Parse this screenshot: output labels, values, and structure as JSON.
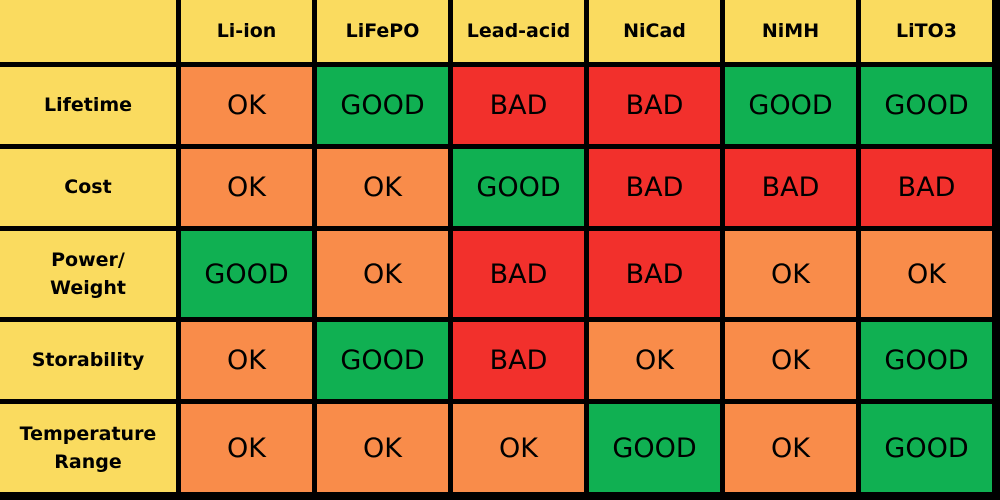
{
  "table": {
    "header_color": "#fadb5f",
    "columns": [
      "Li-ion",
      "LiFePO",
      "Lead-acid",
      "NiCad",
      "NiMH",
      "LiTO3"
    ],
    "rows": [
      {
        "label": "Lifetime",
        "cells": [
          {
            "text": "OK",
            "color": "#f98c4a"
          },
          {
            "text": "GOOD",
            "color": "#10b052"
          },
          {
            "text": "BAD",
            "color": "#f2302c"
          },
          {
            "text": "BAD",
            "color": "#f2302c"
          },
          {
            "text": "GOOD",
            "color": "#10b052"
          },
          {
            "text": "GOOD",
            "color": "#10b052"
          }
        ]
      },
      {
        "label": "Cost",
        "cells": [
          {
            "text": "OK",
            "color": "#f98c4a"
          },
          {
            "text": "OK",
            "color": "#f98c4a"
          },
          {
            "text": "GOOD",
            "color": "#10b052"
          },
          {
            "text": "BAD",
            "color": "#f2302c"
          },
          {
            "text": "BAD",
            "color": "#f2302c"
          },
          {
            "text": "BAD",
            "color": "#f2302c"
          }
        ]
      },
      {
        "label": "Power/\nWeight",
        "cells": [
          {
            "text": "GOOD",
            "color": "#10b052"
          },
          {
            "text": "OK",
            "color": "#f98c4a"
          },
          {
            "text": "BAD",
            "color": "#f2302c"
          },
          {
            "text": "BAD",
            "color": "#f2302c"
          },
          {
            "text": "OK",
            "color": "#f98c4a"
          },
          {
            "text": "OK",
            "color": "#f98c4a"
          }
        ]
      },
      {
        "label": "Storability",
        "cells": [
          {
            "text": "OK",
            "color": "#f98c4a"
          },
          {
            "text": "GOOD",
            "color": "#10b052"
          },
          {
            "text": "BAD",
            "color": "#f2302c"
          },
          {
            "text": "OK",
            "color": "#f98c4a"
          },
          {
            "text": "OK",
            "color": "#f98c4a"
          },
          {
            "text": "GOOD",
            "color": "#10b052"
          }
        ]
      },
      {
        "label": "Temperature Range",
        "cells": [
          {
            "text": "OK",
            "color": "#f98c4a"
          },
          {
            "text": "OK",
            "color": "#f98c4a"
          },
          {
            "text": "OK",
            "color": "#f98c4a"
          },
          {
            "text": "GOOD",
            "color": "#10b052"
          },
          {
            "text": "OK",
            "color": "#f98c4a"
          },
          {
            "text": "GOOD",
            "color": "#10b052"
          }
        ]
      }
    ]
  }
}
